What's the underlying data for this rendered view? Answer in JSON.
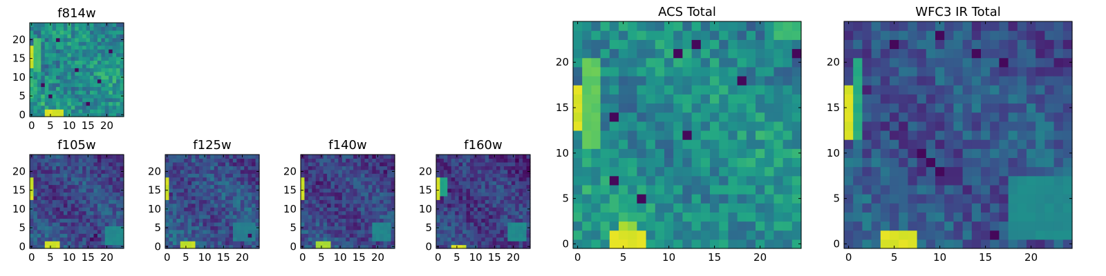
{
  "chart_data": {
    "type": "heatmap",
    "colormap": "viridis",
    "panels": [
      {
        "id": "f814w",
        "title": "f814w",
        "grid_size": [
          25,
          25
        ],
        "xlim": [
          0,
          25
        ],
        "ylim": [
          0,
          25
        ],
        "xticks": [
          0,
          5,
          10,
          15,
          20
        ],
        "yticks": [
          0,
          5,
          10,
          15,
          20
        ],
        "base_level": 0.52,
        "noise": 0.16,
        "hotspots": [
          {
            "x0": 0,
            "x1": 0,
            "y0": 13,
            "y1": 18,
            "level": 0.95
          },
          {
            "x0": 4,
            "x1": 8,
            "y0": 0,
            "y1": 1,
            "level": 0.97
          },
          {
            "x0": 1,
            "x1": 2,
            "y0": 12,
            "y1": 20,
            "level": 0.72
          }
        ],
        "dark_pixels": [
          [
            5,
            5
          ],
          [
            18,
            9
          ],
          [
            12,
            12
          ],
          [
            7,
            20
          ],
          [
            21,
            17
          ],
          [
            3,
            8
          ],
          [
            15,
            3
          ]
        ],
        "seed": 11
      },
      {
        "id": "f105w",
        "title": "f105w",
        "grid_size": [
          25,
          25
        ],
        "xlim": [
          0,
          25
        ],
        "ylim": [
          0,
          25
        ],
        "xticks": [
          0,
          5,
          10,
          15,
          20
        ],
        "yticks": [
          0,
          5,
          10,
          15,
          20
        ],
        "base_level": 0.26,
        "noise": 0.12,
        "hotspots": [
          {
            "x0": 0,
            "x1": 0,
            "y0": 13,
            "y1": 18,
            "level": 0.95
          },
          {
            "x0": 4,
            "x1": 7,
            "y0": 0,
            "y1": 1,
            "level": 0.95
          },
          {
            "x0": 20,
            "x1": 24,
            "y0": 1,
            "y1": 5,
            "level": 0.5
          }
        ],
        "dark_pixels": [
          [
            16,
            2
          ],
          [
            17,
            3
          ]
        ],
        "seed": 23
      },
      {
        "id": "f125w",
        "title": "f125w",
        "grid_size": [
          25,
          25
        ],
        "xlim": [
          0,
          25
        ],
        "ylim": [
          0,
          25
        ],
        "xticks": [
          0,
          5,
          10,
          15,
          20
        ],
        "yticks": [
          0,
          5,
          10,
          15,
          20
        ],
        "base_level": 0.28,
        "noise": 0.13,
        "hotspots": [
          {
            "x0": 0,
            "x1": 0,
            "y0": 13,
            "y1": 18,
            "level": 0.95
          },
          {
            "x0": 4,
            "x1": 7,
            "y0": 0,
            "y1": 1,
            "level": 0.93
          },
          {
            "x0": 18,
            "x1": 23,
            "y0": 2,
            "y1": 6,
            "level": 0.45
          }
        ],
        "dark_pixels": [
          [
            22,
            3
          ]
        ],
        "seed": 37
      },
      {
        "id": "f140w",
        "title": "f140w",
        "grid_size": [
          25,
          25
        ],
        "xlim": [
          0,
          25
        ],
        "ylim": [
          0,
          25
        ],
        "xticks": [
          0,
          5,
          10,
          15,
          20
        ],
        "yticks": [
          0,
          5,
          10,
          15,
          20
        ],
        "base_level": 0.24,
        "noise": 0.12,
        "hotspots": [
          {
            "x0": 0,
            "x1": 0,
            "y0": 13,
            "y1": 18,
            "level": 0.95
          },
          {
            "x0": 4,
            "x1": 7,
            "y0": 0,
            "y1": 1,
            "level": 0.9
          },
          {
            "x0": 19,
            "x1": 23,
            "y0": 2,
            "y1": 6,
            "level": 0.48
          }
        ],
        "dark_pixels": [],
        "seed": 41
      },
      {
        "id": "f160w",
        "title": "f160w",
        "grid_size": [
          25,
          25
        ],
        "xlim": [
          0,
          25
        ],
        "ylim": [
          0,
          25
        ],
        "xticks": [
          0,
          5,
          10,
          15,
          20
        ],
        "yticks": [
          0,
          5,
          10,
          15,
          20
        ],
        "base_level": 0.22,
        "noise": 0.12,
        "hotspots": [
          {
            "x0": 0,
            "x1": 0,
            "y0": 13,
            "y1": 18,
            "level": 0.97
          },
          {
            "x0": 4,
            "x1": 7,
            "y0": 0,
            "y1": 0,
            "level": 0.97
          },
          {
            "x0": 19,
            "x1": 23,
            "y0": 2,
            "y1": 6,
            "level": 0.5
          },
          {
            "x0": 1,
            "x1": 2,
            "y0": 14,
            "y1": 18,
            "level": 0.6
          }
        ],
        "dark_pixels": [],
        "seed": 53
      },
      {
        "id": "acs-total",
        "title": "ACS Total",
        "grid_size": [
          25,
          25
        ],
        "xlim": [
          0,
          25
        ],
        "ylim": [
          0,
          25
        ],
        "xticks": [
          0,
          5,
          10,
          15,
          20
        ],
        "yticks": [
          0,
          5,
          10,
          15,
          20
        ],
        "base_level": 0.52,
        "noise": 0.14,
        "hotspots": [
          {
            "x0": 0,
            "x1": 0,
            "y0": 13,
            "y1": 17,
            "level": 0.97
          },
          {
            "x0": 4,
            "x1": 7,
            "y0": 0,
            "y1": 1,
            "level": 0.97
          },
          {
            "x0": 5,
            "x1": 6,
            "y0": 2,
            "y1": 2,
            "level": 0.88
          },
          {
            "x0": 1,
            "x1": 2,
            "y0": 11,
            "y1": 20,
            "level": 0.78
          },
          {
            "x0": 22,
            "x1": 24,
            "y0": 23,
            "y1": 24,
            "level": 0.7
          }
        ],
        "dark_pixels": [
          [
            12,
            12
          ],
          [
            7,
            5
          ],
          [
            4,
            14
          ],
          [
            18,
            18
          ],
          [
            4,
            7
          ],
          [
            11,
            21
          ],
          [
            24,
            21
          ],
          [
            13,
            22
          ]
        ],
        "seed": 67
      },
      {
        "id": "wfc3-ir-total",
        "title": "WFC3 IR Total",
        "grid_size": [
          25,
          25
        ],
        "xlim": [
          0,
          25
        ],
        "ylim": [
          0,
          25
        ],
        "xticks": [
          0,
          5,
          10,
          15,
          20
        ],
        "yticks": [
          0,
          5,
          10,
          15,
          20
        ],
        "base_level": 0.3,
        "noise": 0.13,
        "hotspots": [
          {
            "x0": 0,
            "x1": 0,
            "y0": 12,
            "y1": 17,
            "level": 0.97
          },
          {
            "x0": 4,
            "x1": 7,
            "y0": 0,
            "y1": 1,
            "level": 0.97
          },
          {
            "x0": 1,
            "x1": 1,
            "y0": 12,
            "y1": 20,
            "level": 0.65
          },
          {
            "x0": 18,
            "x1": 24,
            "y0": 1,
            "y1": 7,
            "level": 0.5
          }
        ],
        "dark_pixels": [
          [
            8,
            10
          ],
          [
            9,
            9
          ],
          [
            10,
            8
          ],
          [
            14,
            21
          ],
          [
            17,
            20
          ],
          [
            10,
            23
          ],
          [
            5,
            22
          ],
          [
            16,
            1
          ]
        ],
        "seed": 79
      }
    ]
  }
}
